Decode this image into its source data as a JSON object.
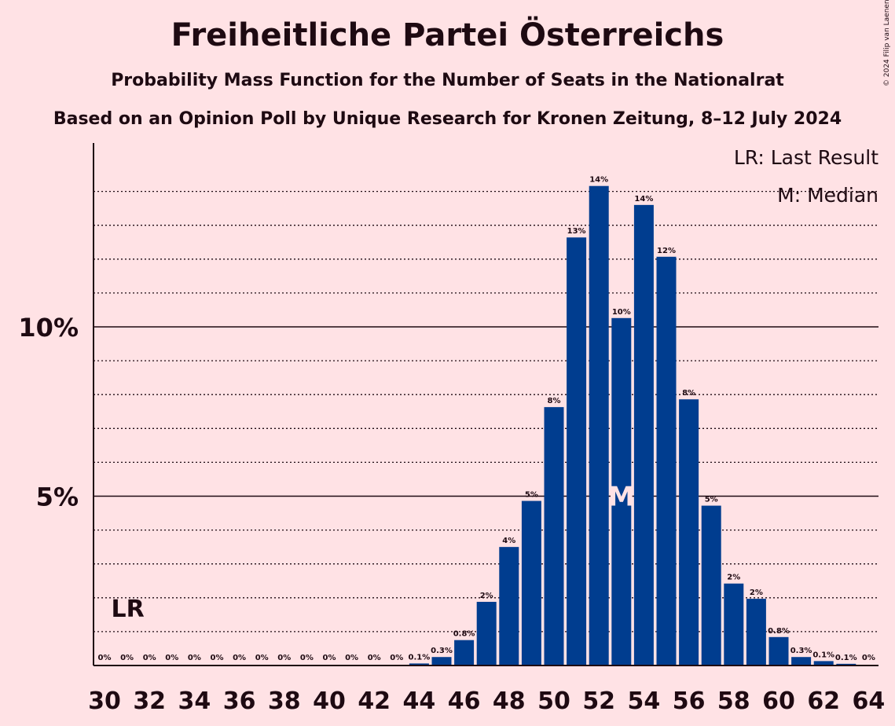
{
  "title": "Freiheitliche Partei Österreichs",
  "subtitle": "Probability Mass Function for the Number of Seats in the Nationalrat",
  "subtitle2": "Based on an Opinion Poll by Unique Research for Kronen Zeitung, 8–12 July 2024",
  "copyright": "© 2024 Filip van Laenen",
  "legend": {
    "lr": "LR: Last Result",
    "median": "M: Median"
  },
  "markers": {
    "lr_label": "LR",
    "median_label": "M"
  },
  "colors": {
    "background": "#ffe2e5",
    "bar": "#003d8f",
    "text": "#1e0a12",
    "median_text": "#ffe2e5"
  },
  "chart_data": {
    "type": "bar",
    "x": [
      30,
      31,
      32,
      33,
      34,
      35,
      36,
      37,
      38,
      39,
      40,
      41,
      42,
      43,
      44,
      45,
      46,
      47,
      48,
      49,
      50,
      51,
      52,
      53,
      54,
      55,
      56,
      57,
      58,
      59,
      60,
      61,
      62,
      63,
      64
    ],
    "values": [
      0,
      0,
      0,
      0,
      0,
      0,
      0,
      0,
      0,
      0,
      0,
      0,
      0,
      0,
      0.06,
      0.25,
      0.75,
      1.88,
      3.5,
      4.86,
      7.63,
      12.64,
      14.16,
      10.26,
      13.6,
      12.07,
      7.86,
      4.72,
      2.42,
      1.97,
      0.84,
      0.25,
      0.13,
      0.05,
      0
    ],
    "data_labels": [
      "0%",
      "0%",
      "0%",
      "0%",
      "0%",
      "0%",
      "0%",
      "0%",
      "0%",
      "0%",
      "0%",
      "0%",
      "0%",
      "0%",
      "0.1%",
      "0.3%",
      "0.8%",
      "2%",
      "4%",
      "5%",
      "8%",
      "13%",
      "14%",
      "10%",
      "14%",
      "12%",
      "8%",
      "5%",
      "2%",
      "2%",
      "0.8%",
      "0.3%",
      "0.1%",
      "0.1%",
      "0%"
    ],
    "x_tick_labels": [
      "30",
      "32",
      "34",
      "36",
      "38",
      "40",
      "42",
      "44",
      "46",
      "48",
      "50",
      "52",
      "54",
      "56",
      "58",
      "60",
      "62",
      "64"
    ],
    "y_tick_labels": [
      "5%",
      "10%"
    ],
    "y_ticks": [
      5,
      10
    ],
    "ylim": [
      0,
      15.5
    ],
    "last_result": 31,
    "median": 53,
    "grid": true
  }
}
